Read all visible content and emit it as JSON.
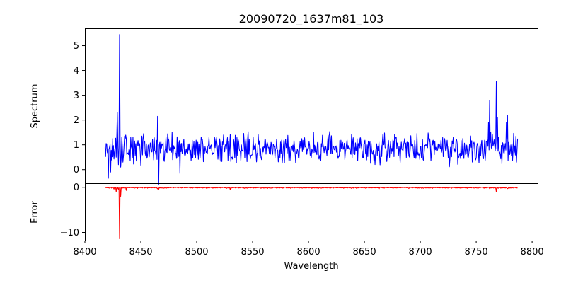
{
  "chart_data": {
    "type": "line",
    "title": "20090720_1637m81_103",
    "xlabel": "Wavelength",
    "xlim": [
      8400,
      8805
    ],
    "xticks": [
      8400,
      8450,
      8500,
      8550,
      8600,
      8650,
      8700,
      8750,
      8800
    ],
    "x_start": 8418,
    "x_end": 8787,
    "panels": [
      {
        "name": "spectrum",
        "ylabel": "Spectrum",
        "ylim": [
          -0.55,
          5.7
        ],
        "yticks": [
          0,
          1,
          2,
          3,
          4,
          5
        ],
        "color": "#0000ff",
        "series_name": "Spectrum",
        "noise_center": 0.85,
        "noise_amplitude": 0.28,
        "features": [
          {
            "x": 8419,
            "y": 1.05
          },
          {
            "x": 8420,
            "y": 0.7
          },
          {
            "x": 8421,
            "y": -0.35
          },
          {
            "x": 8422,
            "y": 0.9
          },
          {
            "x": 8423,
            "y": -0.1
          },
          {
            "x": 8428,
            "y": 0.5
          },
          {
            "x": 8429,
            "y": 2.3
          },
          {
            "x": 8430,
            "y": 0.2
          },
          {
            "x": 8431,
            "y": 5.45
          },
          {
            "x": 8432,
            "y": 0.1
          },
          {
            "x": 8433,
            "y": 1.3
          },
          {
            "x": 8434,
            "y": 0.3
          },
          {
            "x": 8465,
            "y": 2.15
          },
          {
            "x": 8466,
            "y": -0.6
          },
          {
            "x": 8467,
            "y": 1.1
          },
          {
            "x": 8485,
            "y": -0.15
          },
          {
            "x": 8761,
            "y": 1.9
          },
          {
            "x": 8762,
            "y": 2.8
          },
          {
            "x": 8763,
            "y": 1.5
          },
          {
            "x": 8768,
            "y": 3.55
          },
          {
            "x": 8769,
            "y": 2.1
          },
          {
            "x": 8770,
            "y": 1.3
          },
          {
            "x": 8777,
            "y": 1.9
          },
          {
            "x": 8778,
            "y": 2.2
          },
          {
            "x": 8779,
            "y": 1.1
          },
          {
            "x": 8786,
            "y": 0.3
          },
          {
            "x": 8787,
            "y": 1.25
          }
        ]
      },
      {
        "name": "error",
        "ylabel": "Error",
        "ylim": [
          -11.8,
          0.9
        ],
        "yticks": [
          0,
          -10
        ],
        "color": "#ff0000",
        "series_name": "Error",
        "noise_center": -0.1,
        "noise_amplitude": 0.06,
        "features": [
          {
            "x": 8426,
            "y": -0.4
          },
          {
            "x": 8428,
            "y": -1.0
          },
          {
            "x": 8429,
            "y": -0.3
          },
          {
            "x": 8430,
            "y": -0.5
          },
          {
            "x": 8431,
            "y": -11.4
          },
          {
            "x": 8432,
            "y": -2.0
          },
          {
            "x": 8433,
            "y": -0.2
          },
          {
            "x": 8437,
            "y": -0.7
          },
          {
            "x": 8465,
            "y": -0.35
          },
          {
            "x": 8466,
            "y": -0.45
          },
          {
            "x": 8530,
            "y": -0.55
          },
          {
            "x": 8663,
            "y": -0.4
          },
          {
            "x": 8762,
            "y": -0.3
          },
          {
            "x": 8768,
            "y": -1.05
          },
          {
            "x": 8778,
            "y": -0.3
          }
        ]
      }
    ]
  }
}
